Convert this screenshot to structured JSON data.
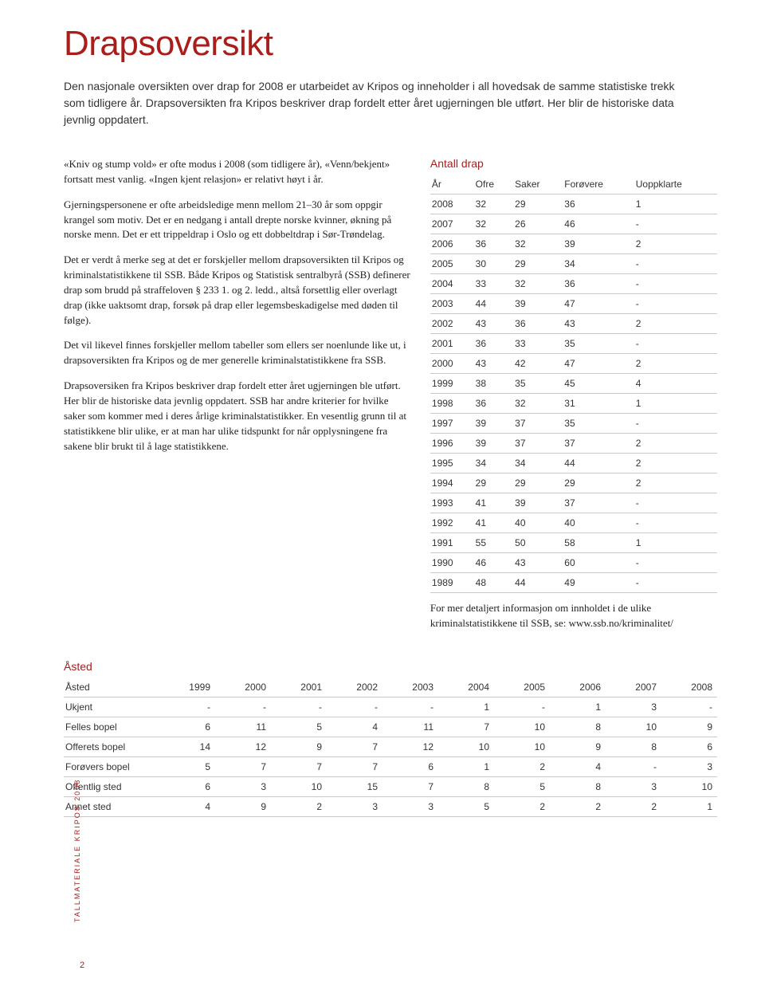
{
  "colors": {
    "title_red": "#a91e1a",
    "text": "#222222",
    "border": "#c8c8c8",
    "background": "#ffffff"
  },
  "typography": {
    "title_fontsize": 44,
    "body_fontsize": 13,
    "table_fontsize": 12,
    "sans_family": "Arial",
    "serif_family": "Georgia"
  },
  "page": {
    "title": "Drapsoversikt",
    "intro": "Den nasjonale oversikten over drap for 2008 er utarbeidet av Kripos og inneholder i all hovedsak de samme statistiske trekk som tidligere år. Drapsoversikten fra Kripos beskriver drap fordelt etter året ugjerningen ble utført. Her blir de historiske data jevnlig oppdatert.",
    "paragraphs": [
      "«Kniv og stump vold» er ofte modus i 2008 (som tidligere år), «Venn/bekjent» fortsatt mest vanlig. «Ingen kjent relasjon» er relativt høyt i år.",
      "Gjerningspersonene er ofte arbeidsledige menn mellom 21–30 år som oppgir krangel som motiv. Det er en nedgang i antall drepte norske kvinner, økning på norske menn. Det er ett trippeldrap i Oslo og ett dobbeltdrap i Sør-Trøndelag.",
      "Det er verdt å merke seg at det er forskjeller mellom drapsoversikten til Kripos og kriminalstatistikkene til SSB. Både Kripos og Statistisk sentralbyrå (SSB) definerer drap som brudd på straffeloven § 233 1. og 2. ledd., altså forsettlig eller overlagt drap (ikke uaktsomt drap, forsøk på drap eller legemsbeskadigelse med døden til følge).",
      "Det vil likevel finnes forskjeller mellom tabeller som ellers ser noenlunde like ut, i drapsoversikten fra Kripos og de mer generelle kriminalstatistikkene fra SSB.",
      "Drapsoversiken fra Kripos beskriver drap fordelt etter året ugjerningen ble utført. Her blir de historiske data jevnlig oppdatert. SSB har andre kriterier for hvilke saker som kommer med i deres årlige kriminalstatistikker. En vesentlig grunn til at statistikkene blir ulike, er at man har ulike tidspunkt for når opplysningene fra sakene blir brukt til å lage statistikkene."
    ],
    "right_footnote": "For mer detaljert informasjon om innholdet i de ulike kriminalstatistikkene til SSB, se: www.ssb.no/kriminalitet/"
  },
  "antall_drap": {
    "type": "table",
    "title": "Antall drap",
    "columns": [
      "År",
      "Ofre",
      "Saker",
      "Forøvere",
      "Uoppklarte"
    ],
    "rows": [
      [
        "2008",
        "32",
        "29",
        "36",
        "1"
      ],
      [
        "2007",
        "32",
        "26",
        "46",
        "-"
      ],
      [
        "2006",
        "36",
        "32",
        "39",
        "2"
      ],
      [
        "2005",
        "30",
        "29",
        "34",
        "-"
      ],
      [
        "2004",
        "33",
        "32",
        "36",
        "-"
      ],
      [
        "2003",
        "44",
        "39",
        "47",
        "-"
      ],
      [
        "2002",
        "43",
        "36",
        "43",
        "2"
      ],
      [
        "2001",
        "36",
        "33",
        "35",
        "-"
      ],
      [
        "2000",
        "43",
        "42",
        "47",
        "2"
      ],
      [
        "1999",
        "38",
        "35",
        "45",
        "4"
      ],
      [
        "1998",
        "36",
        "32",
        "31",
        "1"
      ],
      [
        "1997",
        "39",
        "37",
        "35",
        "-"
      ],
      [
        "1996",
        "39",
        "37",
        "37",
        "2"
      ],
      [
        "1995",
        "34",
        "34",
        "44",
        "2"
      ],
      [
        "1994",
        "29",
        "29",
        "29",
        "2"
      ],
      [
        "1993",
        "41",
        "39",
        "37",
        "-"
      ],
      [
        "1992",
        "41",
        "40",
        "40",
        "-"
      ],
      [
        "1991",
        "55",
        "50",
        "58",
        "1"
      ],
      [
        "1990",
        "46",
        "43",
        "60",
        "-"
      ],
      [
        "1989",
        "48",
        "44",
        "49",
        "-"
      ]
    ]
  },
  "asted": {
    "type": "table",
    "title": "Åsted",
    "columns": [
      "Åsted",
      "1999",
      "2000",
      "2001",
      "2002",
      "2003",
      "2004",
      "2005",
      "2006",
      "2007",
      "2008"
    ],
    "rows": [
      [
        "Ukjent",
        "-",
        "-",
        "-",
        "-",
        "-",
        "1",
        "-",
        "1",
        "3",
        "-"
      ],
      [
        "Felles bopel",
        "6",
        "11",
        "5",
        "4",
        "11",
        "7",
        "10",
        "8",
        "10",
        "9"
      ],
      [
        "Offerets bopel",
        "14",
        "12",
        "9",
        "7",
        "12",
        "10",
        "10",
        "9",
        "8",
        "6"
      ],
      [
        "Forøvers bopel",
        "5",
        "7",
        "7",
        "7",
        "6",
        "1",
        "2",
        "4",
        "-",
        "3"
      ],
      [
        "Offentlig sted",
        "6",
        "3",
        "10",
        "15",
        "7",
        "8",
        "5",
        "8",
        "3",
        "10"
      ],
      [
        "Annet sted",
        "4",
        "9",
        "2",
        "3",
        "3",
        "5",
        "2",
        "2",
        "2",
        "1"
      ]
    ]
  },
  "sidebar": {
    "label": "TALLMATERIALE KRIPOS 2008",
    "page_number": "2"
  }
}
